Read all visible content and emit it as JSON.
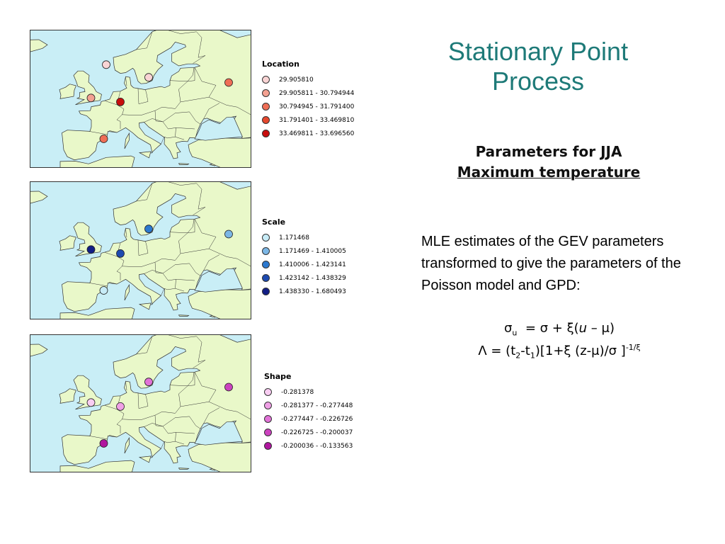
{
  "slide": {
    "title_line1": "Stationary Point",
    "title_line2": "Process",
    "subtitle_line1": "Parameters for JJA",
    "subtitle_line2": "Maximum temperature",
    "description": "MLE estimates of the GEV parameters transformed to give the parameters of the Poisson model and GPD:",
    "formula1": {
      "sigma": "σ",
      "sub_u": "u",
      "eq": "= σ + ξ(",
      "u": "u",
      "rest": " – μ)"
    },
    "formula2": {
      "lambda_part": "Λ = (t",
      "sub2": "2",
      "dash": "-t",
      "sub1": "1",
      "rest": ")[1+ξ (z-μ)/σ ]",
      "exp": "-1/ξ"
    }
  },
  "colors": {
    "ocean": "#c9eef6",
    "land": "#e9f8c9",
    "border": "#333333",
    "title": "#1e7a78"
  },
  "maps": [
    {
      "legend_title": "Location",
      "classes": [
        {
          "label": "29.905810",
          "color": "#f9d4d4"
        },
        {
          "label": "29.905811 - 30.794944",
          "color": "#f4a191"
        },
        {
          "label": "30.794945 - 31.791400",
          "color": "#ef6e56"
        },
        {
          "label": "31.791401 - 33.469810",
          "color": "#e5482e"
        },
        {
          "label": "33.469811 - 33.696560",
          "color": "#c80d0d"
        }
      ],
      "stations": [
        {
          "x": 3,
          "y": 60.2,
          "class": 1
        },
        {
          "x": -1.3,
          "y": 51.8,
          "class": 2
        },
        {
          "x": 7.0,
          "y": 50.8,
          "class": 5
        },
        {
          "x": 2.3,
          "y": 41.5,
          "class": 3
        },
        {
          "x": 15.0,
          "y": 57.0,
          "class": 1
        },
        {
          "x": 37.6,
          "y": 55.7,
          "class": 3
        }
      ]
    },
    {
      "legend_title": "Scale",
      "classes": [
        {
          "label": "1.171468",
          "color": "#c7ecf7"
        },
        {
          "label": "1.171469 - 1.410005",
          "color": "#7cb7e6"
        },
        {
          "label": "1.410006 - 1.423141",
          "color": "#2c79cf"
        },
        {
          "label": "1.423142 - 1.438329",
          "color": "#1d4ab0"
        },
        {
          "label": "1.438330 - 1.680493",
          "color": "#121e86"
        }
      ],
      "stations": [
        {
          "x": 15.0,
          "y": 57.0,
          "class": 3
        },
        {
          "x": -1.3,
          "y": 51.8,
          "class": 5
        },
        {
          "x": 7.0,
          "y": 50.8,
          "class": 4
        },
        {
          "x": 2.3,
          "y": 41.5,
          "class": 1
        },
        {
          "x": 37.6,
          "y": 55.7,
          "class": 2
        }
      ]
    },
    {
      "legend_title": "Shape",
      "classes": [
        {
          "label": "-0.281378",
          "color": "#f9cdf2"
        },
        {
          "label": "-0.281377 - -0.277448",
          "color": "#f0a0e6"
        },
        {
          "label": "-0.277447 - -0.226726",
          "color": "#e172d7"
        },
        {
          "label": "-0.226725 - -0.200037",
          "color": "#cc42bf"
        },
        {
          "label": "-0.200036 - -0.133563",
          "color": "#b0169f"
        }
      ],
      "stations": [
        {
          "x": 15.0,
          "y": 57.0,
          "class": 3
        },
        {
          "x": -1.3,
          "y": 51.8,
          "class": 1
        },
        {
          "x": 7.0,
          "y": 50.8,
          "class": 2
        },
        {
          "x": 2.3,
          "y": 41.5,
          "class": 5
        },
        {
          "x": 37.6,
          "y": 55.7,
          "class": 4
        }
      ]
    }
  ]
}
